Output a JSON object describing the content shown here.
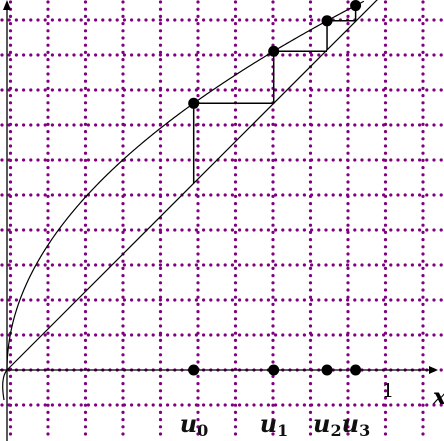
{
  "x_axis": {
    "name": "x",
    "tick_label": "1"
  },
  "curve_function": "sqrt",
  "diagonal_function": "identity",
  "iterates": [
    {
      "value": 0.49,
      "label": "u",
      "sub": "0"
    },
    {
      "value": 0.7,
      "label": "u",
      "sub": "1"
    },
    {
      "value": 0.84,
      "label": "u",
      "sub": "2"
    },
    {
      "value": 0.915,
      "label": "u",
      "sub": "3"
    }
  ],
  "colors": {
    "grid_dots": "#800080",
    "curve": "#000000",
    "diagonal": "#000000",
    "cobweb": "#000000",
    "axis": "#000000",
    "points": "#000000"
  }
}
